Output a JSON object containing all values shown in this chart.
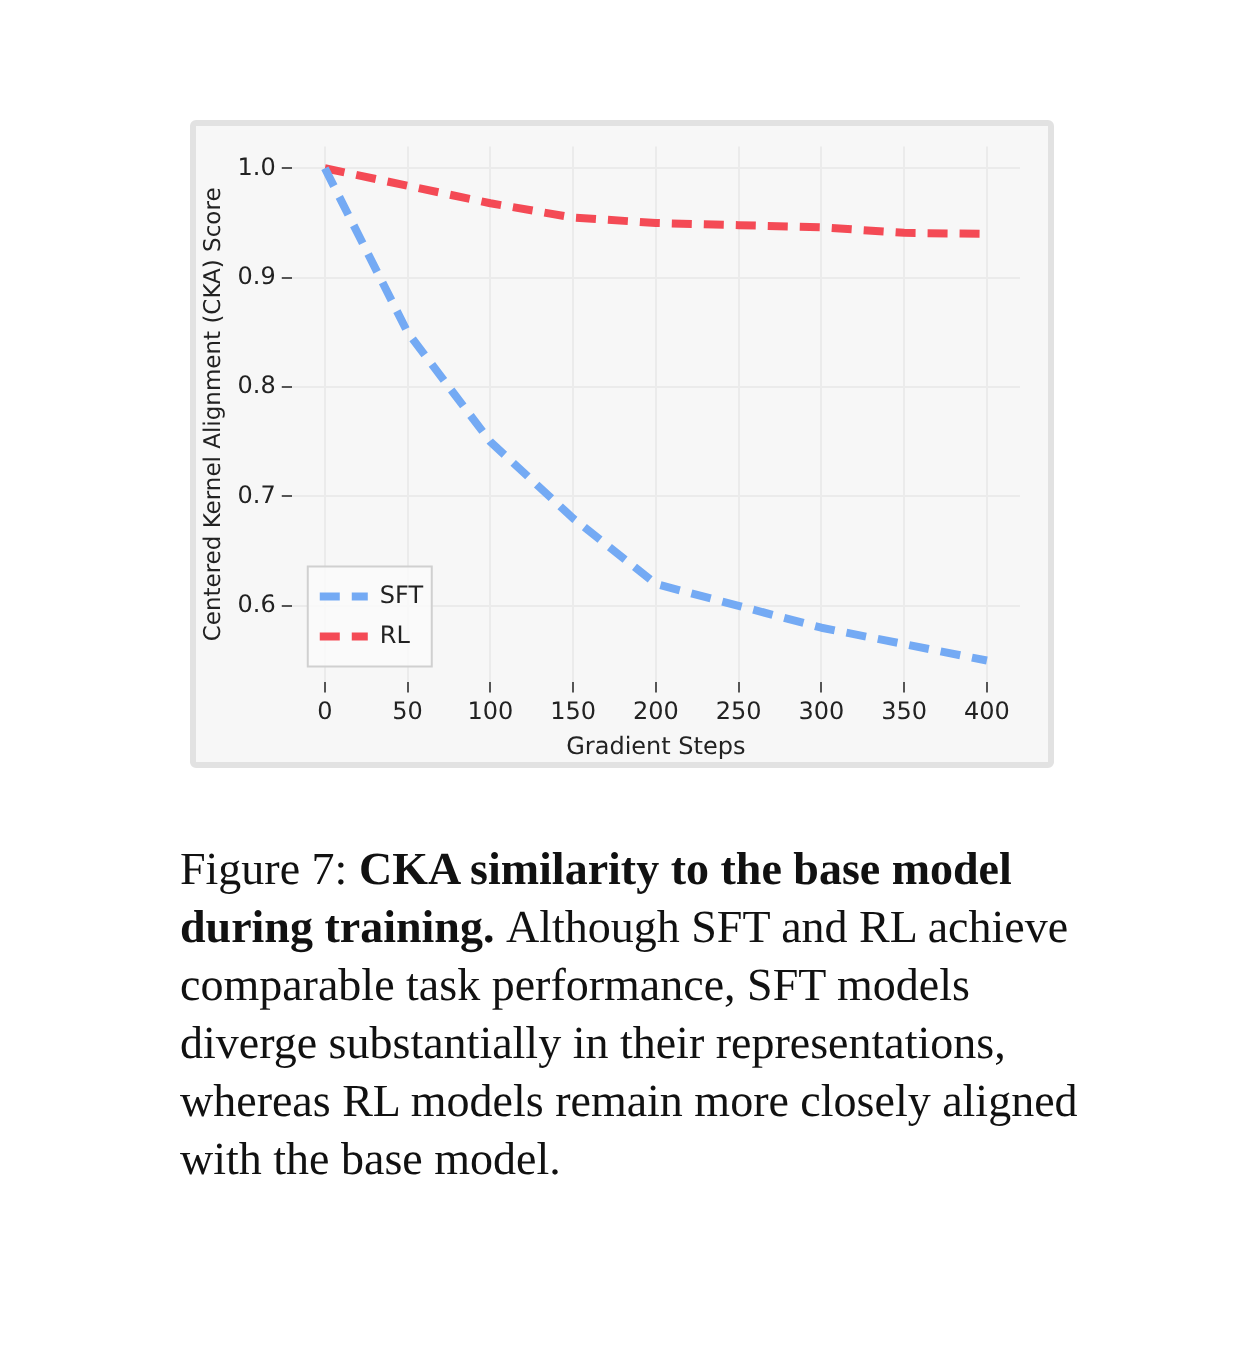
{
  "chart_data": {
    "type": "line",
    "xlabel": "Gradient Steps",
    "ylabel": "Centered Kernel Alignment (CKA) Score",
    "x": [
      0,
      50,
      100,
      150,
      200,
      250,
      300,
      350,
      400
    ],
    "series": [
      {
        "name": "SFT",
        "color": "#74aaf4",
        "values": [
          1.0,
          0.85,
          0.75,
          0.68,
          0.62,
          0.6,
          0.58,
          0.565,
          0.55
        ]
      },
      {
        "name": "RL",
        "color": "#f44a55",
        "values": [
          1.0,
          0.984,
          0.968,
          0.955,
          0.95,
          0.948,
          0.946,
          0.941,
          0.94
        ]
      }
    ],
    "xlim": [
      -20,
      420
    ],
    "xticks": [
      0,
      50,
      100,
      150,
      200,
      250,
      300,
      350,
      400
    ],
    "ylim": [
      0.53,
      1.02
    ],
    "yticks": [
      0.6,
      0.7,
      0.8,
      0.9,
      {
        "value": 1.0,
        "label": "1.0"
      }
    ],
    "grid": true,
    "legend": "bottom left",
    "marker": "none",
    "line_style": "dashed",
    "annotations": [
      "Figure 7:",
      "CKA similarity to the base model during training.",
      "Although SFT and RL achieve comparable task performance, SFT models diverge substantially in their representations, whereas RL models remain more closely aligned with the base model."
    ]
  }
}
